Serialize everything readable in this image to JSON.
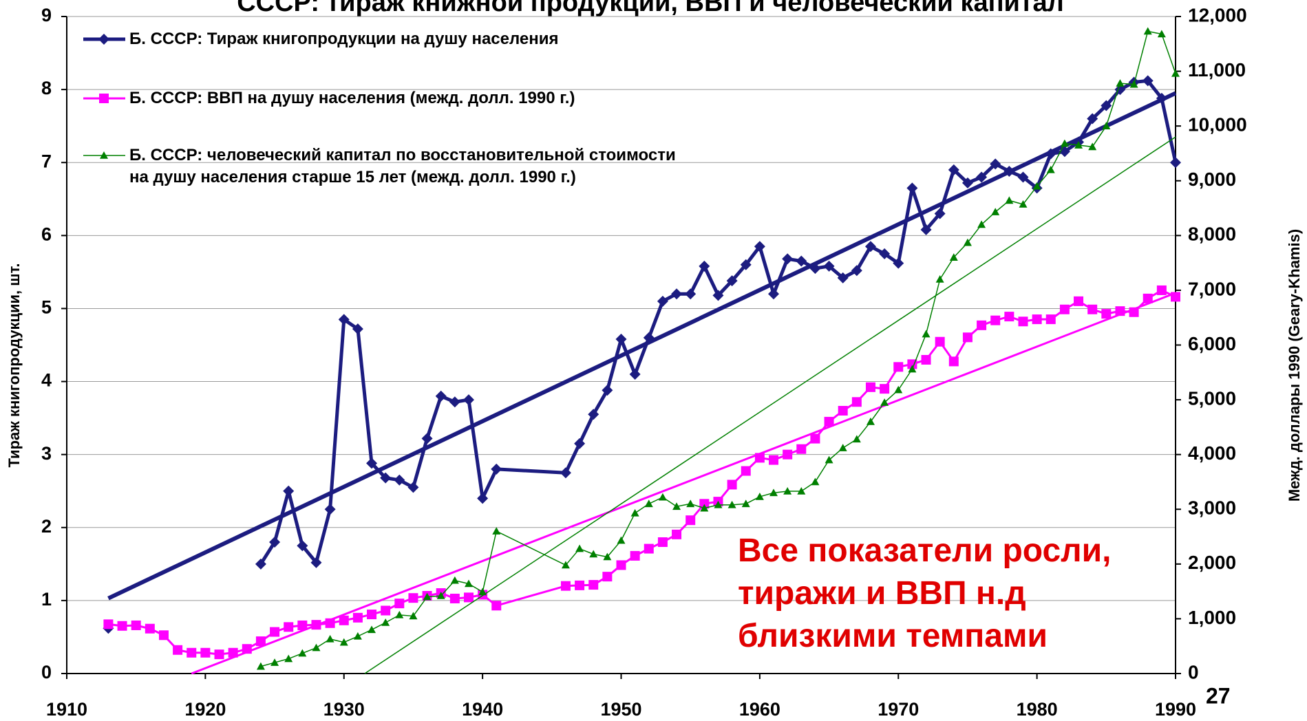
{
  "chart_data": {
    "type": "line",
    "title": "СССР: тираж книжной продукции, ВВП и человеческий капитал",
    "ylabel": "Тираж книгопродукции, шт.",
    "y2label": "Межд. доллары 1990 (Geary-Khamis)",
    "annotation": "Все показатели росли,\nтиражи и ВВП н.д\nблизкими темпами",
    "page_number": "27",
    "xlim": [
      1910,
      1990
    ],
    "xticks": [
      1910,
      1920,
      1930,
      1940,
      1950,
      1960,
      1970,
      1980,
      1990
    ],
    "ylim": [
      0,
      9
    ],
    "yticks": [
      0,
      1,
      2,
      3,
      4,
      5,
      6,
      7,
      8,
      9
    ],
    "y2lim": [
      0,
      12000
    ],
    "y2ticks": [
      0,
      {
        "value": 1000,
        "label": "1,000"
      },
      {
        "value": 2000,
        "label": "2,000"
      },
      {
        "value": 3000,
        "label": "3,000"
      },
      {
        "value": 4000,
        "label": "4,000"
      },
      {
        "value": 5000,
        "label": "5,000"
      },
      {
        "value": 6000,
        "label": "6,000"
      },
      {
        "value": 7000,
        "label": "7,000"
      },
      {
        "value": 8000,
        "label": "8,000"
      },
      {
        "value": 9000,
        "label": "9,000"
      },
      {
        "value": 10000,
        "label": "10,000"
      },
      {
        "value": 11000,
        "label": "11,000"
      },
      {
        "value": 12000,
        "label": "12,000"
      }
    ],
    "grid": true,
    "legend": "upper left",
    "series": [
      {
        "name": "Б. СССР: Тираж книгопродукции на душу населения",
        "color": "#1c1c80",
        "marker": "diamond",
        "axis": "y",
        "x": [
          1913,
          1914,
          1924,
          1925,
          1926,
          1927,
          1928,
          1929,
          1930,
          1931,
          1932,
          1933,
          1934,
          1935,
          1936,
          1937,
          1938,
          1939,
          1940,
          1941,
          1946,
          1947,
          1948,
          1949,
          1950,
          1951,
          1952,
          1953,
          1954,
          1955,
          1956,
          1957,
          1958,
          1959,
          1960,
          1961,
          1962,
          1963,
          1964,
          1965,
          1966,
          1967,
          1968,
          1969,
          1970,
          1971,
          1972,
          1973,
          1974,
          1975,
          1976,
          1977,
          1978,
          1979,
          1980,
          1981,
          1982,
          1983,
          1984,
          1985,
          1986,
          1987,
          1988,
          1989,
          1990
        ],
        "values": [
          0.62,
          null,
          1.5,
          1.8,
          2.5,
          1.75,
          1.52,
          2.25,
          4.85,
          4.72,
          2.88,
          2.68,
          2.65,
          2.55,
          3.22,
          3.8,
          3.72,
          3.75,
          2.4,
          2.8,
          2.75,
          3.15,
          3.55,
          3.88,
          4.58,
          4.1,
          4.6,
          5.1,
          5.2,
          5.2,
          5.58,
          5.18,
          5.38,
          5.6,
          5.85,
          5.2,
          5.68,
          5.65,
          5.55,
          5.58,
          5.42,
          5.52,
          5.85,
          5.75,
          5.62,
          6.65,
          6.08,
          6.3,
          6.9,
          6.72,
          6.8,
          6.98,
          6.88,
          6.8,
          6.65,
          7.12,
          7.15,
          7.28,
          7.6,
          7.78,
          8.0,
          8.1,
          8.12,
          7.88,
          7.0
        ],
        "trend": {
          "x": [
            1913,
            1990
          ],
          "values": [
            1.03,
            7.95
          ]
        }
      },
      {
        "name": "Б. СССР: ВВП на душу населения (межд. долл. 1990 г.)",
        "color": "#ff00ff",
        "marker": "square",
        "axis": "y2",
        "x": [
          1913,
          1914,
          1915,
          1916,
          1917,
          1918,
          1919,
          1920,
          1921,
          1922,
          1923,
          1924,
          1925,
          1926,
          1927,
          1928,
          1929,
          1930,
          1931,
          1932,
          1933,
          1934,
          1935,
          1936,
          1937,
          1938,
          1939,
          1940,
          1941,
          1946,
          1947,
          1948,
          1949,
          1950,
          1951,
          1952,
          1953,
          1954,
          1955,
          1956,
          1957,
          1958,
          1959,
          1960,
          1961,
          1962,
          1963,
          1964,
          1965,
          1966,
          1967,
          1968,
          1969,
          1970,
          1971,
          1972,
          1973,
          1974,
          1975,
          1976,
          1977,
          1978,
          1979,
          1980,
          1981,
          1982,
          1983,
          1984,
          1985,
          1986,
          1987,
          1988,
          1989,
          1990
        ],
        "values": [
          900,
          870,
          880,
          820,
          700,
          430,
          380,
          380,
          350,
          380,
          450,
          590,
          760,
          850,
          880,
          890,
          920,
          970,
          1020,
          1080,
          1150,
          1280,
          1380,
          1420,
          1470,
          1370,
          1390,
          1440,
          1240,
          1600,
          1610,
          1620,
          1770,
          1980,
          2150,
          2280,
          2400,
          2540,
          2800,
          3100,
          3140,
          3450,
          3700,
          3940,
          3900,
          4000,
          4100,
          4290,
          4600,
          4800,
          4960,
          5230,
          5200,
          5600,
          5650,
          5730,
          6060,
          5700,
          6140,
          6360,
          6450,
          6520,
          6430,
          6470,
          6470,
          6650,
          6800,
          6650,
          6570,
          6620,
          6600,
          6850,
          7000,
          6880
        ],
        "trend": {
          "x": [
            1919,
            1990
          ],
          "values": [
            0,
            6950
          ]
        }
      },
      {
        "name": "Б. СССР: человеческий капитал по восстановительной стоимости\nна душу населения старше 15 лет (межд. долл. 1990 г.)",
        "color": "#008000",
        "marker": "triangle",
        "axis": "y2",
        "x": [
          1924,
          1925,
          1926,
          1927,
          1928,
          1929,
          1930,
          1931,
          1932,
          1933,
          1934,
          1935,
          1936,
          1937,
          1938,
          1939,
          1940,
          1941,
          1946,
          1947,
          1948,
          1949,
          1950,
          1951,
          1952,
          1953,
          1954,
          1955,
          1956,
          1957,
          1958,
          1959,
          1960,
          1961,
          1962,
          1963,
          1964,
          1965,
          1966,
          1967,
          1968,
          1969,
          1970,
          1971,
          1972,
          1973,
          1974,
          1975,
          1976,
          1977,
          1978,
          1979,
          1980,
          1981,
          1982,
          1983,
          1984,
          1985,
          1986,
          1987,
          1988,
          1989,
          1990
        ],
        "values": [
          130,
          200,
          270,
          370,
          470,
          630,
          570,
          680,
          800,
          930,
          1070,
          1050,
          1400,
          1420,
          1700,
          1640,
          1490,
          2600,
          1980,
          2280,
          2180,
          2130,
          2430,
          2930,
          3100,
          3220,
          3050,
          3100,
          3020,
          3080,
          3080,
          3100,
          3230,
          3300,
          3330,
          3330,
          3500,
          3900,
          4120,
          4280,
          4600,
          4950,
          5180,
          5560,
          6200,
          7200,
          7600,
          7870,
          8200,
          8430,
          8640,
          8570,
          8900,
          9200,
          9680,
          9650,
          9620,
          10000,
          10780,
          10760,
          11730,
          11680,
          10960
        ],
        "trend": {
          "x": [
            1931.5,
            1990
          ],
          "values": [
            0,
            9800
          ]
        }
      }
    ]
  }
}
